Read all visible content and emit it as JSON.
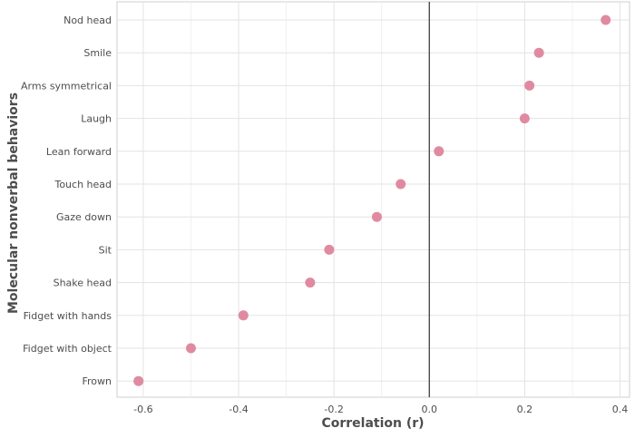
{
  "chart_data": {
    "type": "scatter",
    "xlabel": "Correlation (r)",
    "ylabel": "Molecular nonverbal behaviors",
    "xlim": [
      -0.655,
      0.42
    ],
    "xticks": [
      -0.6,
      -0.4,
      -0.2,
      0.0,
      0.2,
      0.4
    ],
    "xtick_labels": [
      "-0.6",
      "-0.4",
      "-0.2",
      "0.0",
      "0.2",
      "0.4"
    ],
    "grid": true,
    "reference_line_x": 0,
    "point_color": "#e08aa1",
    "categories": [
      "Nod head",
      "Smile",
      "Arms symmetrical",
      "Laugh",
      "Lean forward",
      "Touch head",
      "Gaze down",
      "Sit",
      "Shake head",
      "Fidget with hands",
      "Fidget with object",
      "Frown"
    ],
    "values": [
      0.37,
      0.23,
      0.21,
      0.2,
      0.02,
      -0.06,
      -0.11,
      -0.21,
      -0.25,
      -0.39,
      -0.5,
      -0.61
    ]
  }
}
